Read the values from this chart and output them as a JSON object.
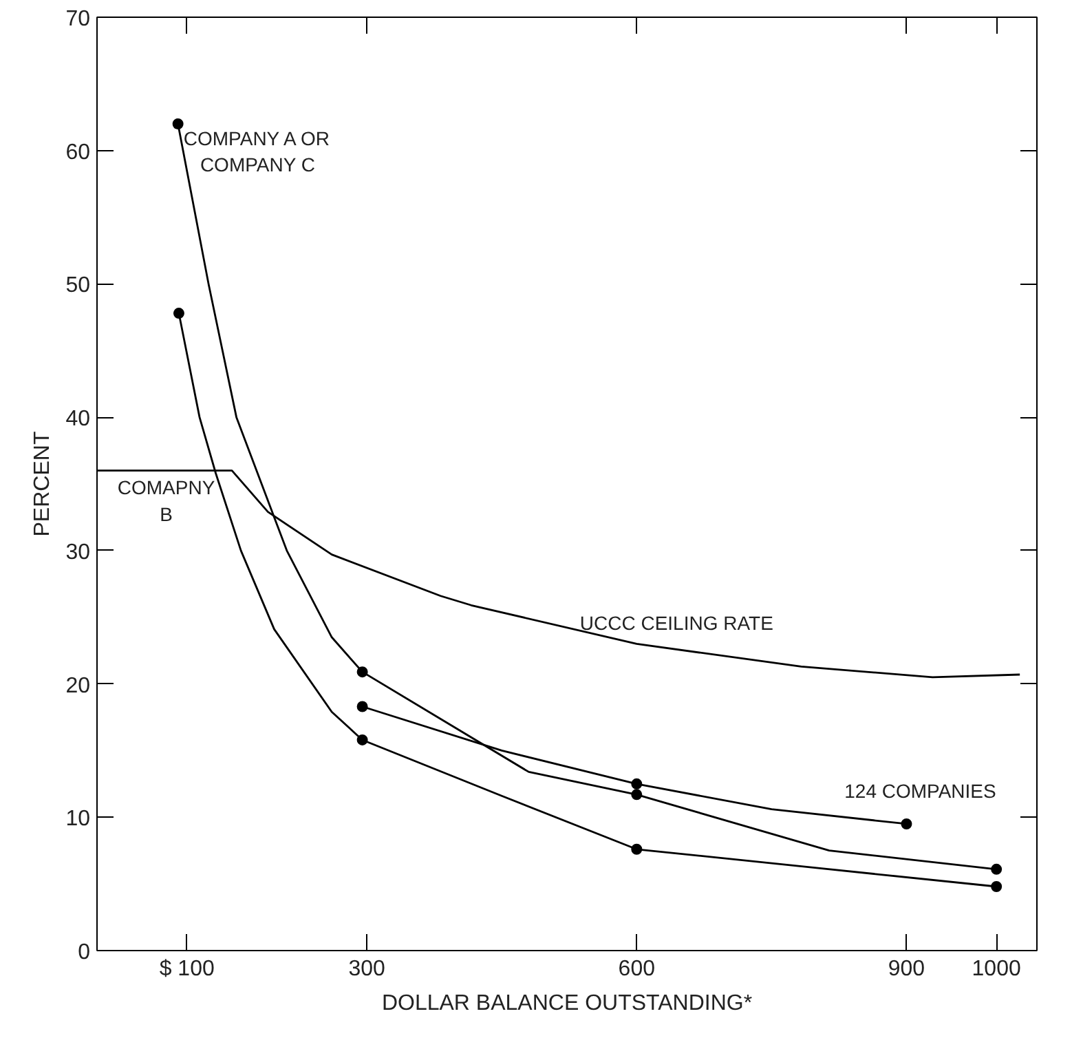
{
  "chart_data": {
    "type": "line",
    "xlabel": "DOLLAR BALANCE OUTSTANDING*",
    "ylabel": "PERCENT",
    "xlim": [
      0,
      1045
    ],
    "ylim": [
      0,
      70
    ],
    "xticks": [
      {
        "value": 100,
        "label": "$ 100"
      },
      300,
      600,
      900,
      1000
    ],
    "yticks": [
      0,
      10,
      20,
      30,
      40,
      50,
      60,
      70
    ],
    "grid": false,
    "marker": "none",
    "line_style": "solid",
    "series": [
      {
        "name": "COMPANY A OR\nCOMPANY C",
        "color": "#000000",
        "x": [
          90,
          124,
          155,
          211,
          261,
          295,
          480,
          600,
          814,
          1000
        ],
        "values": [
          62,
          50,
          40,
          30,
          23.5,
          20.9,
          13.4,
          11.7,
          7.5,
          6.1
        ]
      },
      {
        "name": "COMAPNY\nB",
        "color": "#000000",
        "x": [
          91,
          114,
          132,
          160,
          197,
          261,
          295,
          450,
          600,
          800,
          1000
        ],
        "values": [
          47.8,
          40,
          35.8,
          30,
          24.1,
          17.9,
          15.8,
          11.6,
          7.6,
          6.2,
          4.8
        ]
      },
      {
        "name": "124 COMPANIES",
        "color": "#000000",
        "x": [
          295,
          450,
          600,
          750,
          900
        ],
        "values": [
          18.3,
          15,
          12.5,
          10.6,
          9.5
        ]
      },
      {
        "name": "UCCC CEILING RATE",
        "color": "#000000",
        "x": [
          0,
          150,
          190,
          261,
          382,
          416,
          600,
          783,
          929,
          1026
        ],
        "values": [
          36,
          36,
          32.9,
          29.7,
          26.6,
          25.9,
          23,
          21.3,
          20.5,
          20.7
        ]
      },
      {
        "type": "scatter",
        "marker": "circle",
        "color": "#000000",
        "x": [
          90,
          295,
          600,
          1000,
          91,
          295,
          600,
          1000,
          295,
          600,
          900
        ],
        "values": [
          62,
          20.9,
          11.7,
          6.1,
          47.8,
          15.8,
          7.6,
          4.8,
          18.3,
          12.5,
          9.5
        ]
      }
    ]
  }
}
